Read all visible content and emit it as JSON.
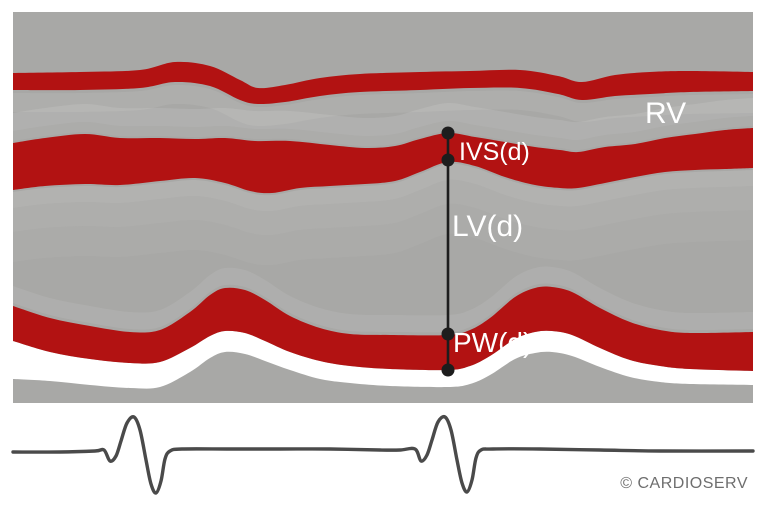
{
  "figure": {
    "labels": {
      "rv": "RV",
      "ivs_d": "IVS(d)",
      "lv_d": "LV(d)",
      "pw_d": "PW(d)"
    },
    "copyright": "© CARDIOSERV",
    "colors": {
      "page_background": "#ffffff",
      "panel_gray": "#a8a8a6",
      "contour_light": "#b4b4b2",
      "myocardium_red": "#b21212",
      "endocardium_white": "#ffffff",
      "caliper_dark": "#1d1d1d",
      "label_text": "#ffffff",
      "ecg_trace": "#4a4a4a",
      "copyright_text": "#6e6e6e"
    }
  }
}
